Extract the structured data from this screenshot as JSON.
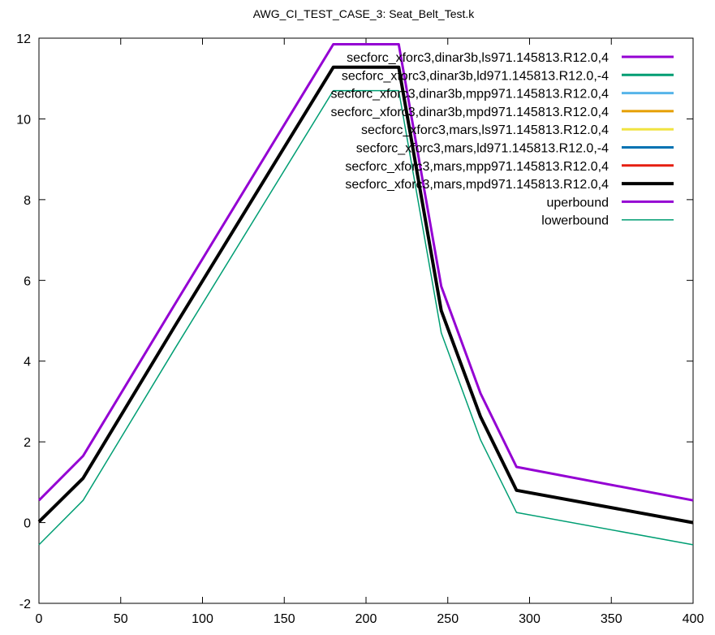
{
  "chart_data": {
    "type": "line",
    "title": "AWG_CI_TEST_CASE_3: Seat_Belt_Test.k",
    "xlabel": "",
    "ylabel": "",
    "xlim": [
      0,
      400
    ],
    "ylim": [
      -2,
      12
    ],
    "xticks": [
      0,
      50,
      100,
      150,
      200,
      250,
      300,
      350,
      400
    ],
    "yticks": [
      -2,
      0,
      2,
      4,
      6,
      8,
      10,
      12
    ],
    "grid": false,
    "legend_position": "top-right",
    "series": [
      {
        "name": "secforc_xforc3,dinar3b,ls971.145813.R12.0,4",
        "color": "#9400d3",
        "width": 3,
        "x": [
          0,
          27,
          83,
          180,
          220,
          246,
          270,
          292,
          400
        ],
        "y": [
          0.02,
          1.1,
          4.86,
          11.28,
          11.28,
          5.25,
          2.62,
          0.8,
          0.0
        ]
      },
      {
        "name": "secforc_xforc3,dinar3b,ld971.145813.R12.0,-4",
        "color": "#009e73",
        "width": 3,
        "x": [
          0,
          27,
          83,
          180,
          220,
          246,
          270,
          292,
          400
        ],
        "y": [
          0.02,
          1.1,
          4.86,
          11.28,
          11.28,
          5.25,
          2.62,
          0.8,
          0.0
        ]
      },
      {
        "name": "secforc_xforc3,dinar3b,mpp971.145813.R12.0,4",
        "color": "#56b4e9",
        "width": 3,
        "x": [
          0,
          27,
          83,
          180,
          220,
          246,
          270,
          292,
          400
        ],
        "y": [
          0.02,
          1.1,
          4.86,
          11.28,
          11.28,
          5.25,
          2.62,
          0.8,
          0.0
        ]
      },
      {
        "name": "secforc_xforc3,dinar3b,mpd971.145813.R12.0,4",
        "color": "#e69f00",
        "width": 3,
        "x": [
          0,
          27,
          83,
          180,
          220,
          246,
          270,
          292,
          400
        ],
        "y": [
          0.02,
          1.1,
          4.86,
          11.28,
          11.28,
          5.25,
          2.62,
          0.8,
          0.0
        ]
      },
      {
        "name": "secforc_xforc3,mars,ls971.145813.R12.0,4",
        "color": "#f0e442",
        "width": 3,
        "x": [
          0,
          27,
          83,
          180,
          220,
          246,
          270,
          292,
          400
        ],
        "y": [
          0.02,
          1.1,
          4.86,
          11.28,
          11.28,
          5.25,
          2.62,
          0.8,
          0.0
        ]
      },
      {
        "name": "secforc_xforc3,mars,ld971.145813.R12.0,-4",
        "color": "#0072b2",
        "width": 3,
        "x": [
          0,
          27,
          83,
          180,
          220,
          246,
          270,
          292,
          400
        ],
        "y": [
          0.02,
          1.1,
          4.86,
          11.28,
          11.28,
          5.25,
          2.62,
          0.8,
          0.0
        ]
      },
      {
        "name": "secforc_xforc3,mars,mpp971.145813.R12.0,4",
        "color": "#e51e10",
        "width": 3,
        "x": [
          0,
          27,
          83,
          180,
          220,
          246,
          270,
          292,
          400
        ],
        "y": [
          0.02,
          1.1,
          4.86,
          11.28,
          11.28,
          5.25,
          2.62,
          0.8,
          0.0
        ]
      },
      {
        "name": "secforc_xforc3,mars,mpd971.145813.R12.0,4",
        "color": "#000000",
        "width": 4,
        "x": [
          0,
          27,
          83,
          180,
          220,
          246,
          270,
          292,
          400
        ],
        "y": [
          0.02,
          1.1,
          4.86,
          11.28,
          11.28,
          5.25,
          2.62,
          0.8,
          0.0
        ]
      },
      {
        "name": "uperbound",
        "color": "#9400d3",
        "width": 3,
        "x": [
          0,
          27,
          83,
          180,
          220,
          246,
          270,
          292,
          400
        ],
        "y": [
          0.55,
          1.65,
          5.4,
          11.85,
          11.85,
          5.85,
          3.2,
          1.38,
          0.55
        ]
      },
      {
        "name": "lowerbound",
        "color": "#009e73",
        "width": 1.5,
        "x": [
          0,
          27,
          83,
          180,
          220,
          246,
          270,
          292,
          400
        ],
        "y": [
          -0.55,
          0.55,
          4.3,
          10.7,
          10.7,
          4.7,
          2.05,
          0.25,
          -0.55
        ]
      }
    ]
  }
}
